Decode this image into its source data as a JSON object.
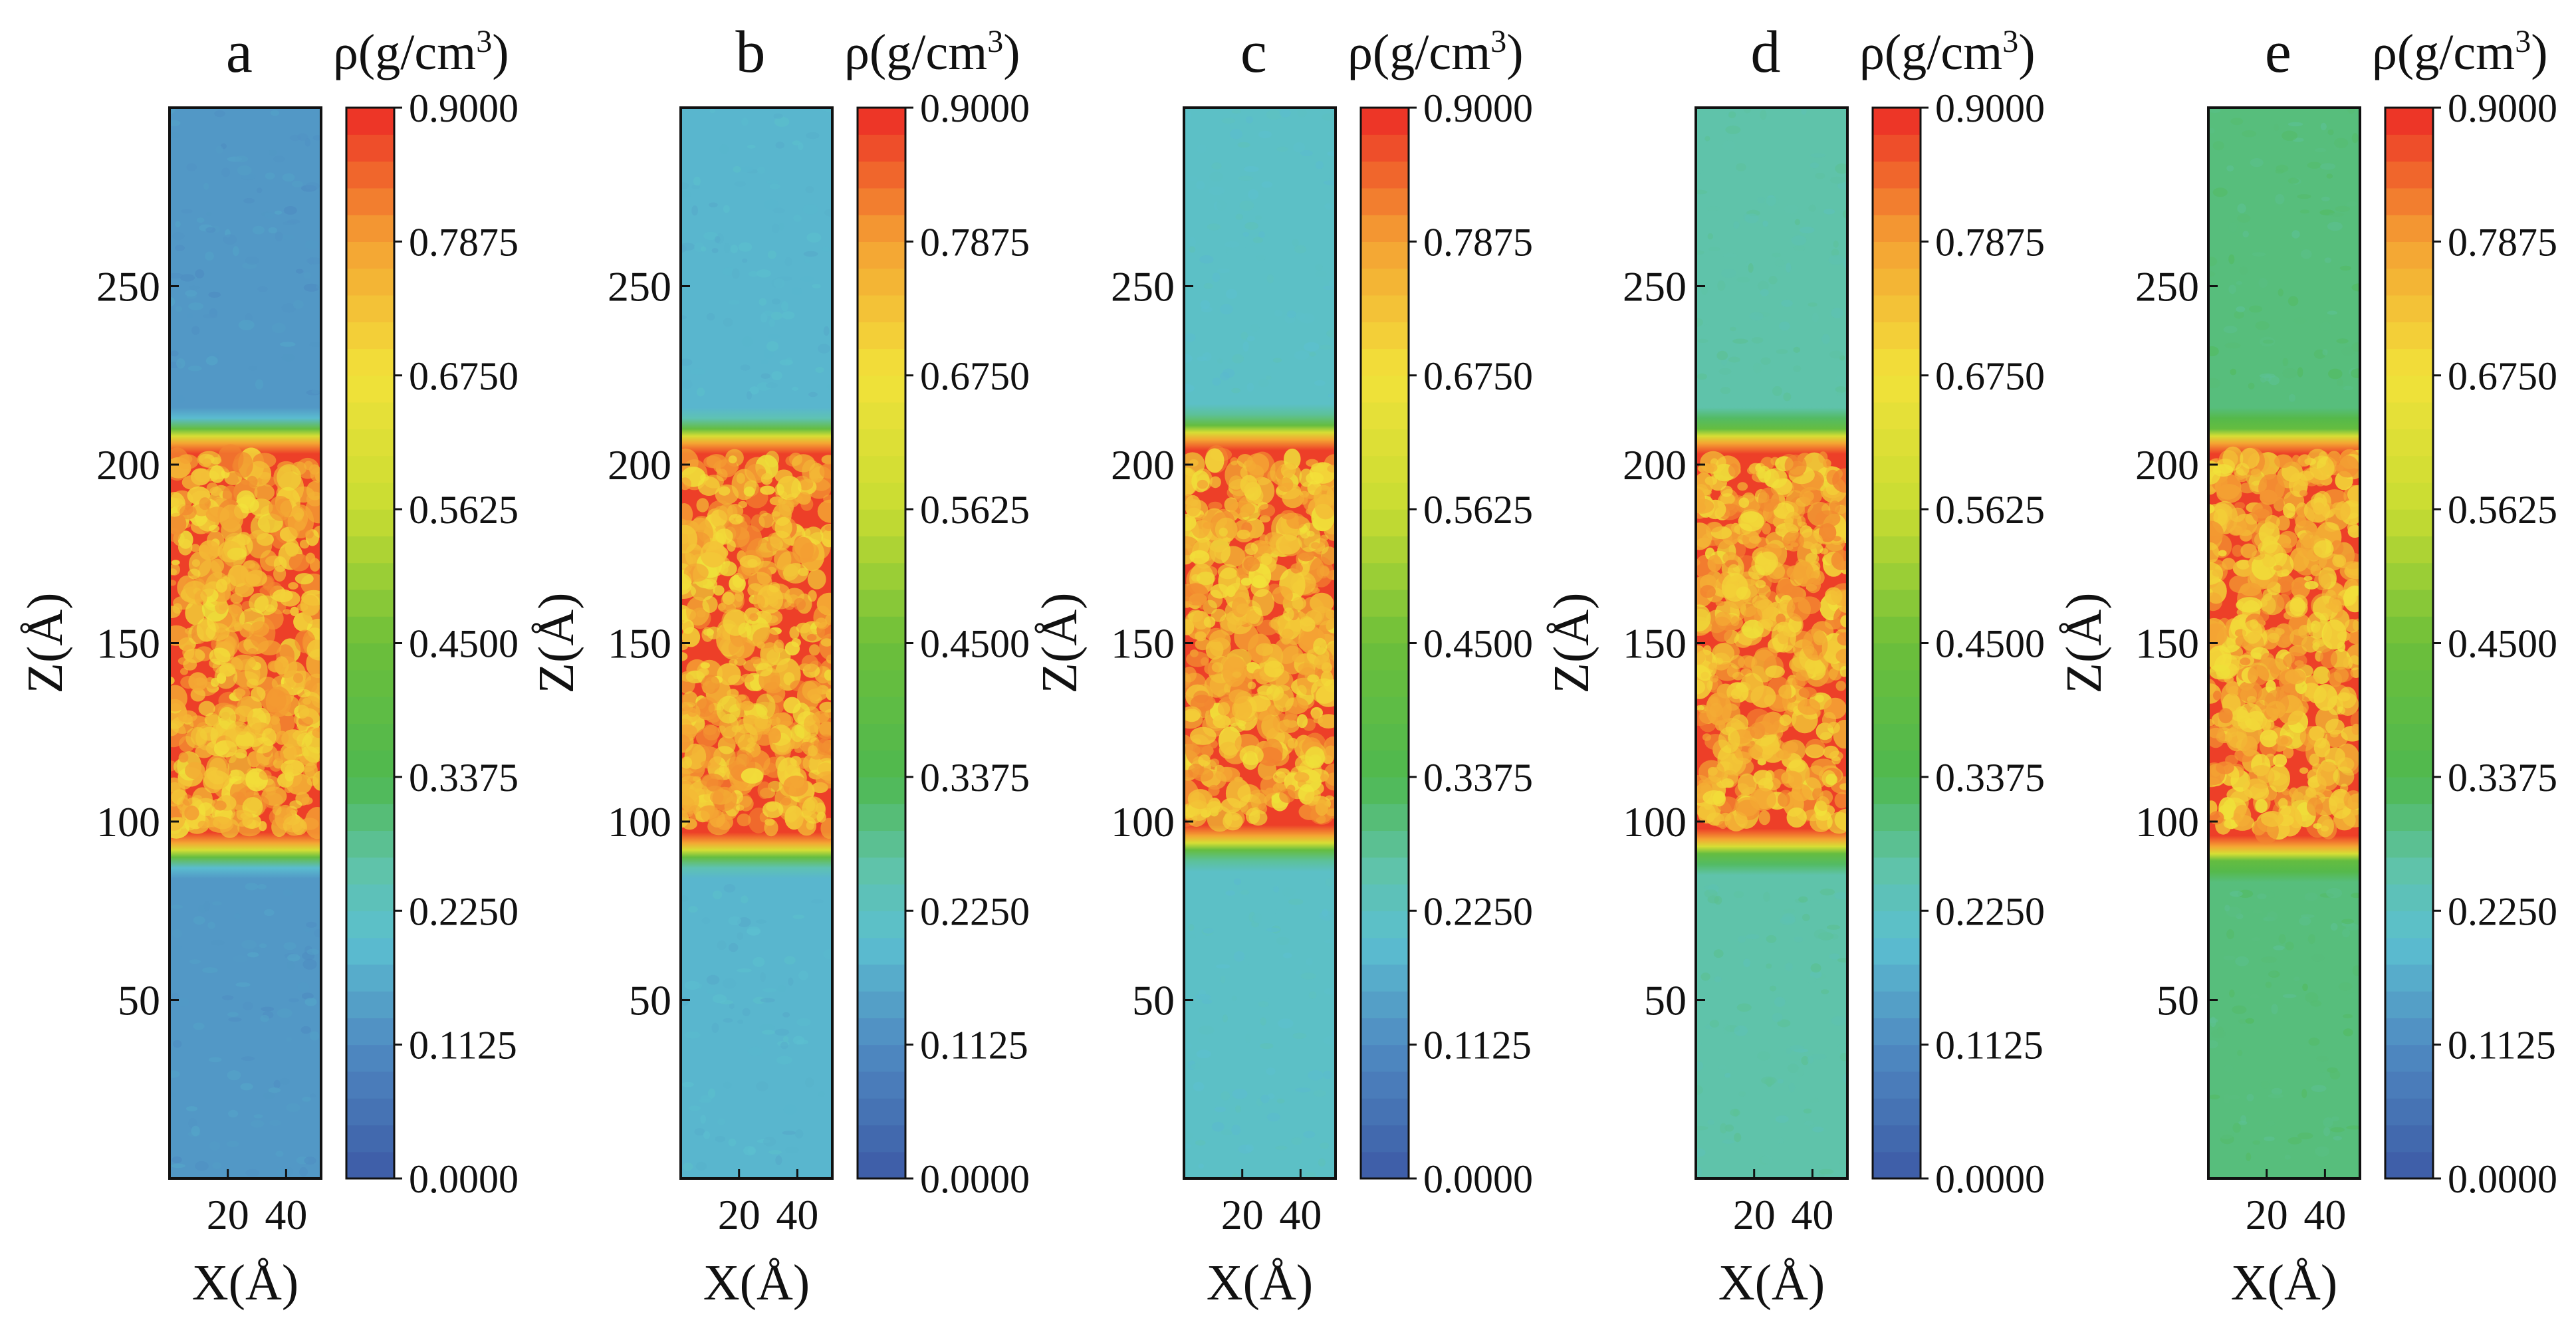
{
  "chart_data": {
    "type": "heatmap",
    "panels": [
      {
        "id": "a",
        "label": "a",
        "colorbar_title": "ρ(g/cm",
        "colorbar_title_sup": "3",
        "colorbar_title_end": ")",
        "background_density": 0.135,
        "interface_low": 92,
        "interface_high": 208,
        "slab_density": 0.88
      },
      {
        "id": "b",
        "label": "b",
        "colorbar_title": "ρ(g/cm",
        "colorbar_title_sup": "3",
        "colorbar_title_end": ")",
        "background_density": 0.185,
        "interface_low": 92,
        "interface_high": 208,
        "slab_density": 0.88
      },
      {
        "id": "c",
        "label": "c",
        "colorbar_title": "ρ(g/cm",
        "colorbar_title_sup": "3",
        "colorbar_title_end": ")",
        "background_density": 0.215,
        "interface_low": 94,
        "interface_high": 209,
        "slab_density": 0.88
      },
      {
        "id": "d",
        "label": "d",
        "colorbar_title": "ρ(g/cm",
        "colorbar_title_sup": "3",
        "colorbar_title_end": ")",
        "background_density": 0.26,
        "interface_low": 93,
        "interface_high": 208,
        "slab_density": 0.88
      },
      {
        "id": "e",
        "label": "e",
        "colorbar_title": "ρ(g/cm",
        "colorbar_title_sup": "3",
        "colorbar_title_end": ")",
        "background_density": 0.3,
        "interface_low": 91,
        "interface_high": 208,
        "slab_density": 0.88
      }
    ],
    "xlabel": "X(Å)",
    "ylabel": "Z(Å)",
    "x_ticks": [
      20,
      40
    ],
    "xlim": [
      0,
      52
    ],
    "y_ticks": [
      50,
      100,
      150,
      200,
      250
    ],
    "ylim": [
      0,
      300
    ],
    "colorbar_range": [
      0.0,
      0.9
    ],
    "colorbar_ticks": [
      "0.0000",
      "0.1125",
      "0.2250",
      "0.3375",
      "0.4500",
      "0.5625",
      "0.6750",
      "0.7875",
      "0.9000"
    ],
    "colormap": {
      "stops": [
        0.0,
        0.1125,
        0.2,
        0.2625,
        0.3375,
        0.45,
        0.5625,
        0.675,
        0.7875,
        0.9
      ],
      "colors": [
        "#3d5aa6",
        "#4f8bc2",
        "#5bbfd0",
        "#5fc3a8",
        "#4fb84f",
        "#6dbf3a",
        "#c8dc32",
        "#f2e23a",
        "#f4a233",
        "#ec2a26"
      ]
    }
  }
}
